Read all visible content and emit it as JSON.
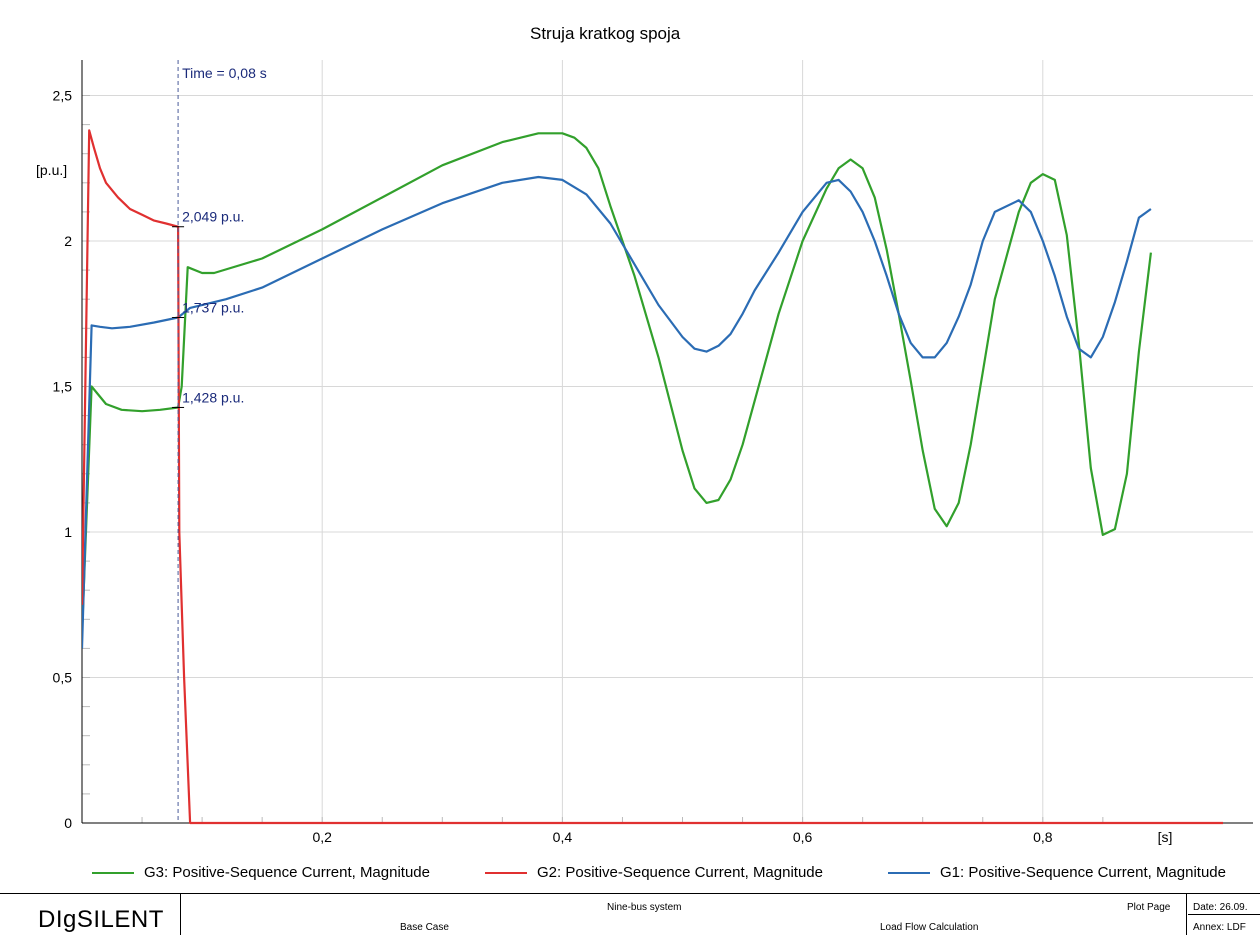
{
  "chart_data": {
    "type": "line",
    "title": "Struja kratkog spoja",
    "ylabel": "[p.u.]",
    "xlabel": "[s]",
    "xlim": [
      0.0,
      0.89
    ],
    "ylim": [
      0.0,
      2.5
    ],
    "x_ticks": [
      "0,2",
      "0,4",
      "0,6",
      "0,8"
    ],
    "y_ticks": [
      "0",
      "0,5",
      "1",
      "1,5",
      "2",
      "2,5"
    ],
    "grid": true,
    "legend_position": "bottom",
    "cursor": {
      "x": 0.08,
      "label": "Time = 0,08 s"
    },
    "annotations": [
      {
        "x": 0.08,
        "y": 2.049,
        "text": "2,049 p.u."
      },
      {
        "x": 0.08,
        "y": 1.737,
        "text": "1,737 p.u."
      },
      {
        "x": 0.08,
        "y": 1.428,
        "text": "1,428 p.u."
      }
    ],
    "series": [
      {
        "name": "G3: Positive-Sequence Current, Magnitude",
        "color": "#32a02c",
        "x": [
          0.0,
          0.008,
          0.02,
          0.033,
          0.05,
          0.065,
          0.08,
          0.083,
          0.088,
          0.1,
          0.11,
          0.15,
          0.2,
          0.25,
          0.3,
          0.35,
          0.38,
          0.4,
          0.41,
          0.42,
          0.43,
          0.44,
          0.46,
          0.48,
          0.5,
          0.51,
          0.52,
          0.53,
          0.54,
          0.55,
          0.56,
          0.58,
          0.6,
          0.62,
          0.63,
          0.64,
          0.65,
          0.66,
          0.67,
          0.68,
          0.69,
          0.7,
          0.71,
          0.72,
          0.73,
          0.74,
          0.75,
          0.76,
          0.78,
          0.79,
          0.8,
          0.81,
          0.82,
          0.83,
          0.84,
          0.85,
          0.86,
          0.87,
          0.88,
          0.89
        ],
        "y": [
          0.65,
          1.5,
          1.44,
          1.42,
          1.415,
          1.42,
          1.428,
          1.5,
          1.91,
          1.89,
          1.89,
          1.94,
          2.04,
          2.15,
          2.26,
          2.34,
          2.37,
          2.37,
          2.355,
          2.32,
          2.25,
          2.12,
          1.88,
          1.6,
          1.28,
          1.15,
          1.1,
          1.11,
          1.18,
          1.3,
          1.45,
          1.75,
          2.0,
          2.18,
          2.25,
          2.28,
          2.25,
          2.15,
          1.97,
          1.75,
          1.52,
          1.28,
          1.08,
          1.02,
          1.1,
          1.3,
          1.55,
          1.8,
          2.1,
          2.2,
          2.23,
          2.21,
          2.02,
          1.65,
          1.22,
          0.99,
          1.01,
          1.2,
          1.62,
          1.96
        ]
      },
      {
        "name": "G2: Positive-Sequence Current, Magnitude",
        "color": "#e03030",
        "x": [
          0.0,
          0.006,
          0.01,
          0.015,
          0.02,
          0.03,
          0.04,
          0.05,
          0.06,
          0.07,
          0.08,
          0.081,
          0.085,
          0.09,
          0.95
        ],
        "y": [
          0.75,
          2.38,
          2.32,
          2.25,
          2.2,
          2.15,
          2.11,
          2.09,
          2.07,
          2.06,
          2.049,
          1.0,
          0.5,
          0.0,
          0.0
        ]
      },
      {
        "name": "G1: Positive-Sequence Current, Magnitude",
        "color": "#2b6cb4",
        "x": [
          0.0,
          0.008,
          0.015,
          0.025,
          0.04,
          0.06,
          0.08,
          0.09,
          0.12,
          0.15,
          0.2,
          0.25,
          0.3,
          0.35,
          0.38,
          0.4,
          0.42,
          0.44,
          0.46,
          0.48,
          0.5,
          0.51,
          0.52,
          0.53,
          0.54,
          0.55,
          0.56,
          0.58,
          0.6,
          0.62,
          0.63,
          0.64,
          0.65,
          0.66,
          0.67,
          0.68,
          0.69,
          0.7,
          0.71,
          0.72,
          0.73,
          0.74,
          0.75,
          0.76,
          0.78,
          0.79,
          0.8,
          0.81,
          0.82,
          0.83,
          0.84,
          0.85,
          0.86,
          0.87,
          0.88,
          0.89
        ],
        "y": [
          0.6,
          1.71,
          1.705,
          1.7,
          1.705,
          1.72,
          1.737,
          1.77,
          1.8,
          1.84,
          1.94,
          2.04,
          2.13,
          2.2,
          2.22,
          2.21,
          2.16,
          2.06,
          1.92,
          1.78,
          1.67,
          1.63,
          1.62,
          1.64,
          1.68,
          1.75,
          1.83,
          1.96,
          2.1,
          2.2,
          2.21,
          2.17,
          2.1,
          2.0,
          1.88,
          1.75,
          1.65,
          1.6,
          1.6,
          1.65,
          1.74,
          1.85,
          2.0,
          2.1,
          2.14,
          2.1,
          2.0,
          1.88,
          1.74,
          1.63,
          1.6,
          1.67,
          1.79,
          1.93,
          2.08,
          2.11
        ]
      }
    ]
  },
  "footer": {
    "logo": "DIgSILENT",
    "study_case": "Base Case",
    "project": "Nine-bus system",
    "calculation": "Load Flow Calculation",
    "plot_page": "Plot Page",
    "date": "Date: 26.09.",
    "annex": "Annex: LDF"
  }
}
